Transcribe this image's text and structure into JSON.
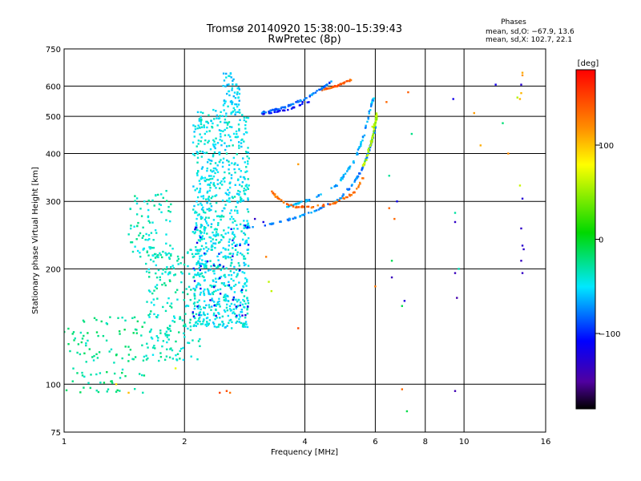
{
  "header": {
    "title": "Tromsø 20140920 15:38:00–15:39:43",
    "subtitle": "RwPretec (8p)"
  },
  "phases_box": {
    "heading": "Phases",
    "line_o": "mean, sd,O: −67.9, 13.6",
    "line_x": "mean, sd,X: 102.7, 22.1"
  },
  "colorbar": {
    "unit_label": "[deg]",
    "range": [
      -180,
      180
    ],
    "tick_values": [
      100,
      0,
      -100
    ],
    "tick_labels": [
      "100",
      "0",
      "−100"
    ]
  },
  "chart_data": {
    "type": "scatter",
    "xlabel": "Frequency [MHz]",
    "ylabel": "Stationary phase Virtual Height [km]",
    "x_scale": "log",
    "y_scale": "log",
    "xlim": [
      1,
      16
    ],
    "ylim": [
      75,
      750
    ],
    "x_ticks": [
      1,
      2,
      4,
      6,
      8,
      10,
      16
    ],
    "x_tick_labels": [
      "1",
      "2",
      "4",
      "6",
      "8",
      "10",
      "16"
    ],
    "y_ticks": [
      75,
      100,
      200,
      300,
      400,
      500,
      600,
      750
    ],
    "y_tick_labels": [
      "75",
      "100",
      "200",
      "300",
      "400",
      "500",
      "600",
      "750"
    ],
    "grid_x": [
      2,
      4,
      6,
      8,
      10
    ],
    "grid_y": [
      100,
      200,
      300,
      400,
      500,
      600
    ],
    "color_by": "phase [deg]",
    "series": [
      {
        "kind": "line",
        "phase": -75,
        "spread": 0.006,
        "count": 120,
        "points": [
          [
            2.8,
            255
          ],
          [
            3.3,
            262
          ],
          [
            3.8,
            272
          ],
          [
            4.3,
            285
          ],
          [
            4.9,
            305
          ],
          [
            5.3,
            335
          ],
          [
            5.6,
            370
          ],
          [
            5.8,
            410
          ],
          [
            5.95,
            450
          ],
          [
            6.0,
            470
          ]
        ]
      },
      {
        "kind": "line",
        "phase": -65,
        "spread": 0.006,
        "count": 90,
        "points": [
          [
            3.6,
            290
          ],
          [
            4.2,
            305
          ],
          [
            4.8,
            330
          ],
          [
            5.3,
            380
          ],
          [
            5.6,
            440
          ],
          [
            5.85,
            530
          ],
          [
            5.95,
            560
          ]
        ]
      },
      {
        "kind": "line",
        "phase": 60,
        "spread": 0.007,
        "count": 60,
        "points": [
          [
            5.6,
            370
          ],
          [
            5.75,
            400
          ],
          [
            5.9,
            440
          ],
          [
            6.0,
            480
          ],
          [
            6.05,
            510
          ]
        ]
      },
      {
        "kind": "line",
        "phase": 135,
        "spread": 0.008,
        "count": 70,
        "points": [
          [
            3.3,
            318
          ],
          [
            3.5,
            300
          ],
          [
            3.8,
            290
          ],
          [
            4.2,
            290
          ],
          [
            4.7,
            295
          ],
          [
            5.3,
            315
          ],
          [
            5.6,
            345
          ]
        ]
      },
      {
        "kind": "line",
        "phase": 140,
        "spread": 0.006,
        "count": 40,
        "points": [
          [
            4.4,
            585
          ],
          [
            4.8,
            600
          ],
          [
            5.2,
            622
          ]
        ]
      },
      {
        "kind": "line",
        "phase": -80,
        "spread": 0.007,
        "count": 80,
        "points": [
          [
            3.1,
            510
          ],
          [
            3.5,
            525
          ],
          [
            4.0,
            555
          ],
          [
            4.4,
            590
          ],
          [
            4.7,
            622
          ]
        ]
      },
      {
        "kind": "line",
        "phase": -110,
        "spread": 0.005,
        "count": 25,
        "points": [
          [
            3.1,
            505
          ],
          [
            3.6,
            520
          ],
          [
            4.1,
            545
          ]
        ]
      },
      {
        "kind": "cloud",
        "phase": -45,
        "count": 850,
        "xr": [
          2.1,
          2.9
        ],
        "yr": [
          140,
          520
        ]
      },
      {
        "kind": "cloud",
        "phase": -35,
        "count": 200,
        "xr": [
          1.6,
          2.2
        ],
        "yr": [
          115,
          230
        ]
      },
      {
        "kind": "cloud",
        "phase": -25,
        "count": 110,
        "xr": [
          1.0,
          1.6
        ],
        "yr": [
          95,
          150
        ]
      },
      {
        "kind": "cloud",
        "phase": -35,
        "count": 90,
        "xr": [
          1.45,
          1.85
        ],
        "yr": [
          215,
          320
        ]
      },
      {
        "kind": "cloud",
        "phase": -55,
        "count": 60,
        "xr": [
          2.5,
          2.75
        ],
        "yr": [
          500,
          650
        ]
      },
      {
        "kind": "cloud",
        "phase": -110,
        "count": 45,
        "xr": [
          2.1,
          2.9
        ],
        "yr": [
          150,
          260
        ]
      },
      {
        "kind": "pts",
        "phase": 140,
        "points": [
          [
            2.45,
            95
          ],
          [
            2.55,
            96
          ],
          [
            2.6,
            95
          ],
          [
            3.2,
            215
          ],
          [
            3.85,
            140
          ],
          [
            6.0,
            180
          ],
          [
            7.0,
            97
          ],
          [
            7.25,
            578
          ],
          [
            6.4,
            545
          ],
          [
            6.5,
            288
          ],
          [
            6.7,
            270
          ]
        ]
      },
      {
        "kind": "pts",
        "phase": 65,
        "points": [
          [
            3.3,
            175
          ],
          [
            3.25,
            185
          ],
          [
            5.9,
            470
          ],
          [
            13.8,
            330
          ],
          [
            13.6,
            560
          ],
          [
            1.9,
            110
          ]
        ]
      },
      {
        "kind": "pts",
        "phase": -20,
        "points": [
          [
            6.5,
            350
          ],
          [
            6.6,
            210
          ],
          [
            7.0,
            160
          ],
          [
            7.4,
            450
          ],
          [
            9.5,
            280
          ],
          [
            9.7,
            200
          ],
          [
            12.5,
            480
          ],
          [
            7.2,
            85
          ]
        ]
      },
      {
        "kind": "pts",
        "phase": -130,
        "points": [
          [
            6.6,
            190
          ],
          [
            6.8,
            300
          ],
          [
            7.1,
            165
          ],
          [
            9.5,
            265
          ],
          [
            9.5,
            195
          ],
          [
            9.6,
            168
          ],
          [
            9.5,
            96
          ],
          [
            9.4,
            555
          ],
          [
            12.0,
            605
          ],
          [
            13.9,
            605
          ],
          [
            14.0,
            305
          ],
          [
            13.9,
            255
          ],
          [
            14.0,
            230
          ],
          [
            14.1,
            225
          ],
          [
            13.9,
            210
          ],
          [
            14.0,
            195
          ],
          [
            3.95,
            545
          ],
          [
            3.0,
            270
          ],
          [
            3.15,
            265
          ]
        ]
      },
      {
        "kind": "pts",
        "phase": 105,
        "points": [
          [
            10.6,
            510
          ],
          [
            11.0,
            420
          ],
          [
            13.9,
            575
          ],
          [
            13.8,
            555
          ],
          [
            14.0,
            650
          ],
          [
            14.0,
            640
          ],
          [
            3.85,
            375
          ],
          [
            12.9,
            400
          ],
          [
            1.35,
            100
          ],
          [
            1.45,
            95
          ]
        ]
      }
    ]
  }
}
